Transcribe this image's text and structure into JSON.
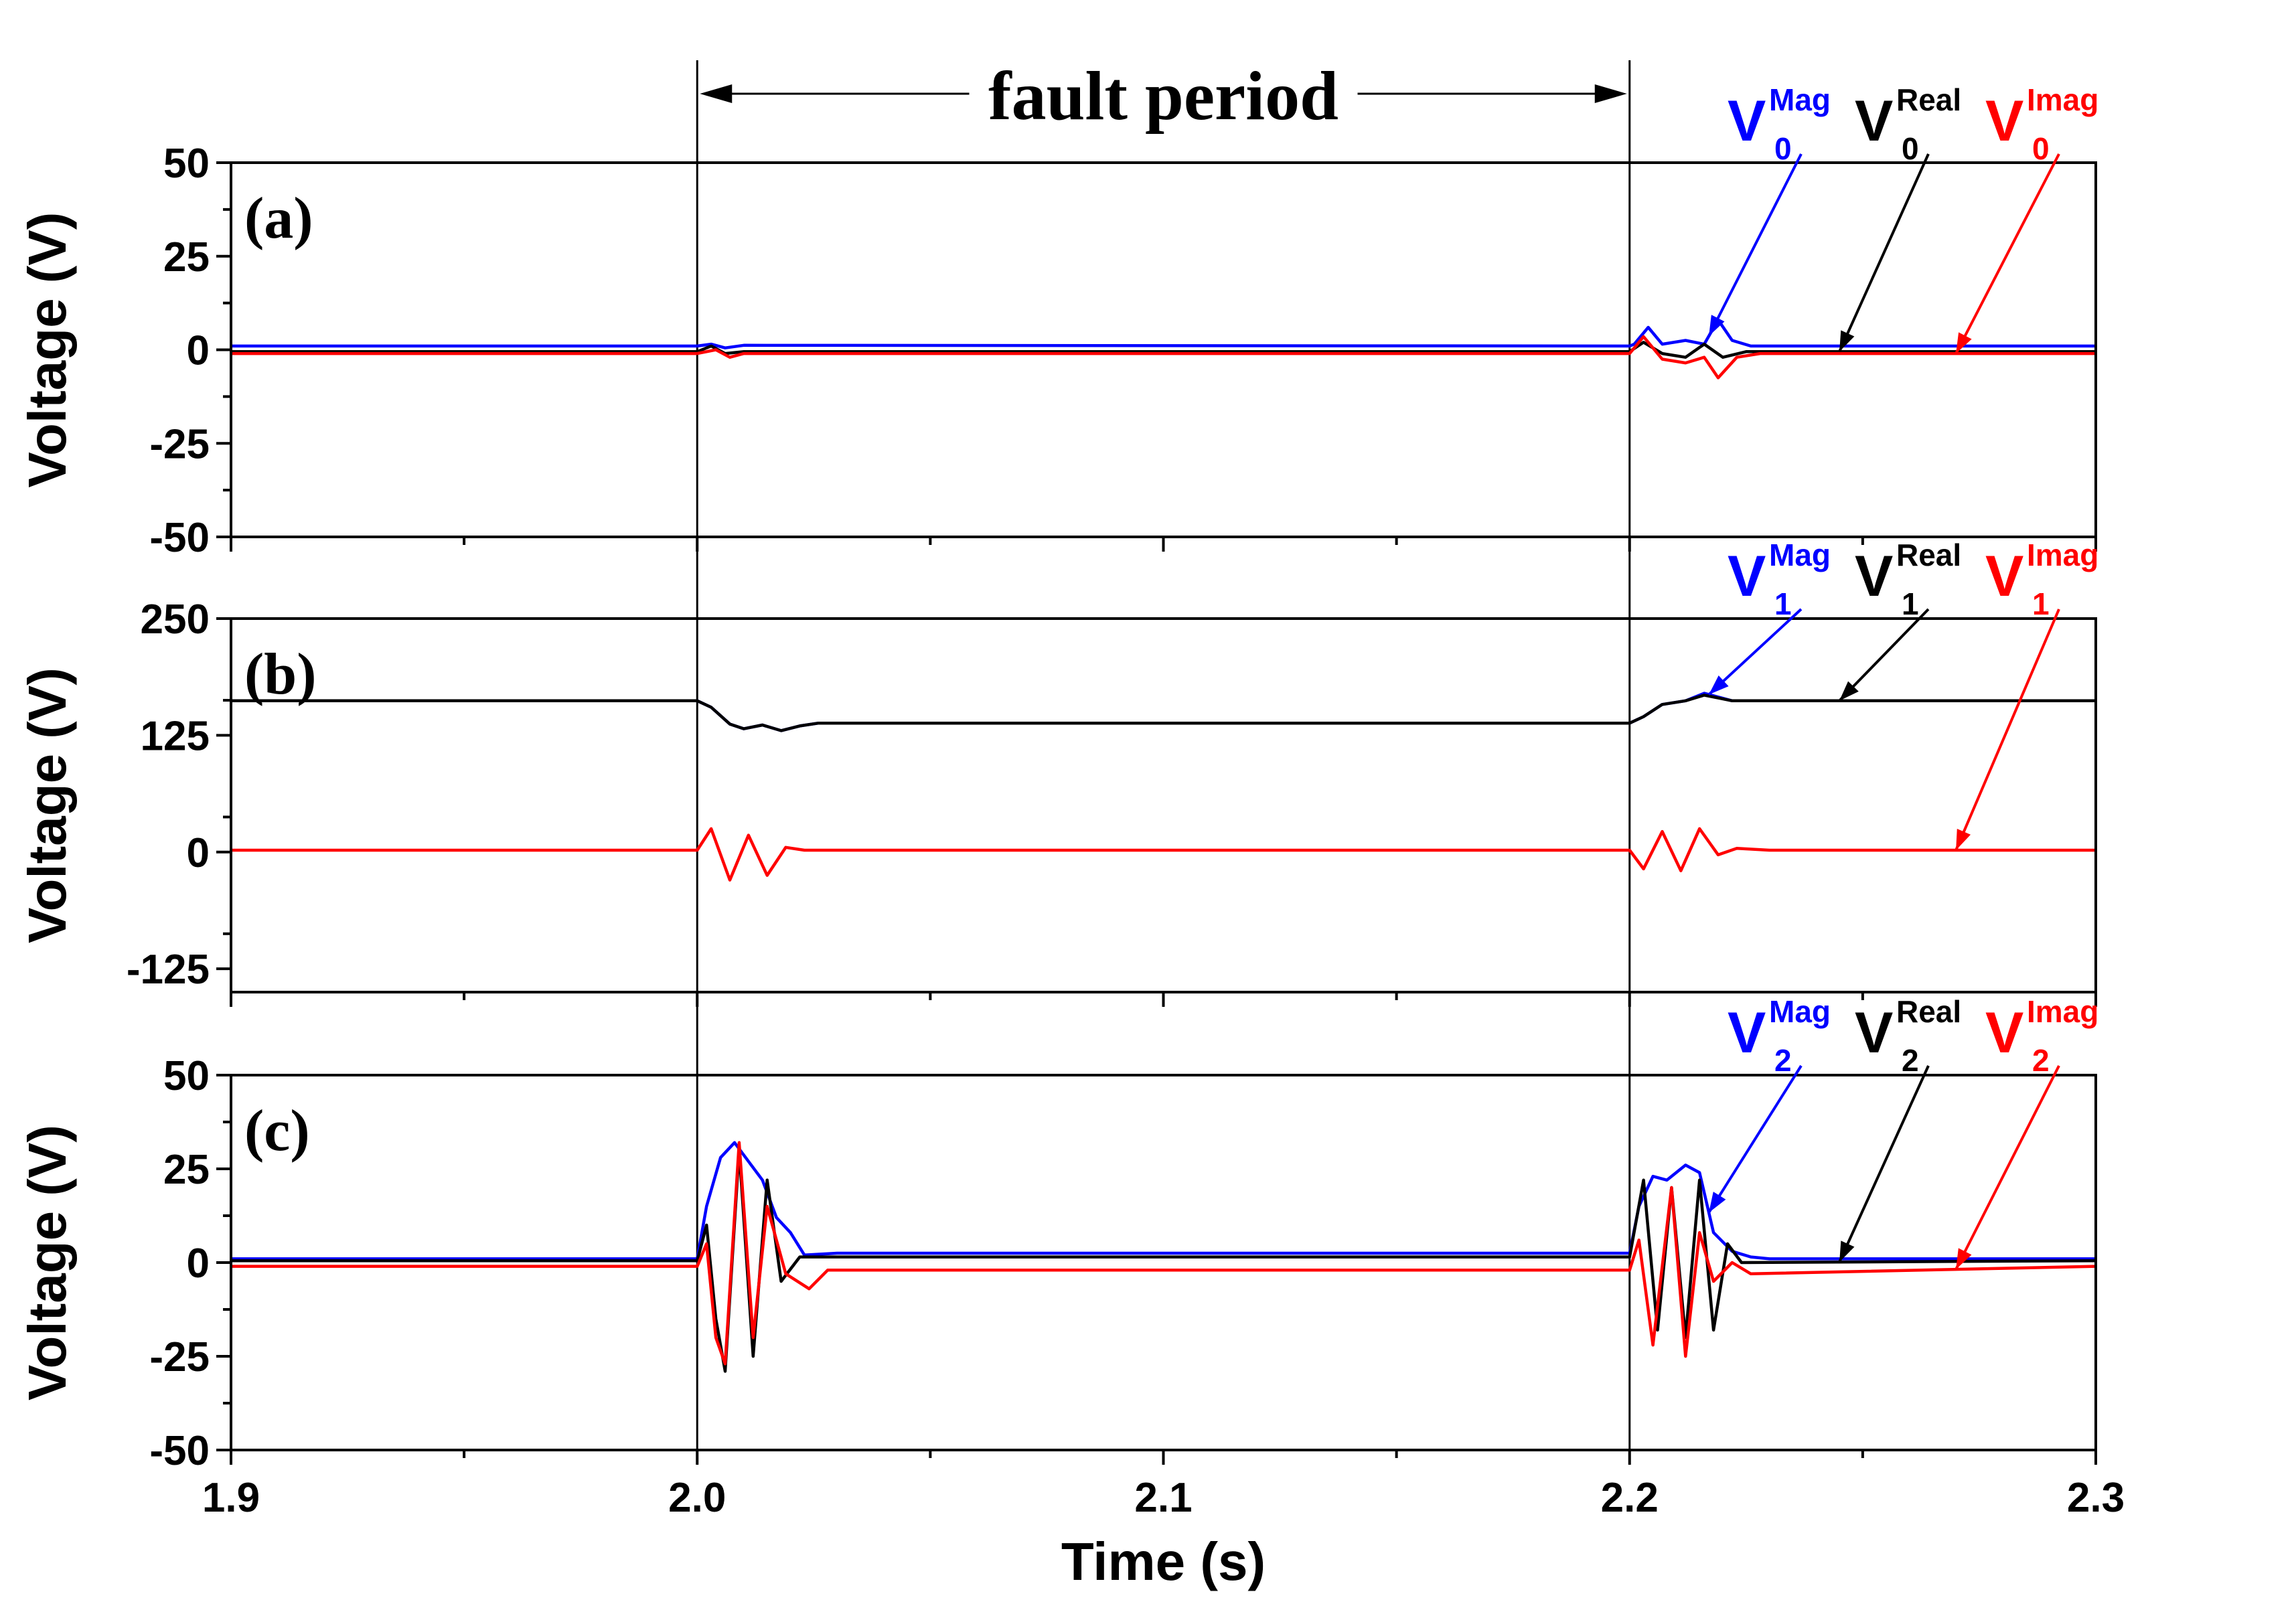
{
  "figure": {
    "xlabel": "Time (s)",
    "fault_label": "fault period",
    "fault_start": 2.0,
    "fault_end": 2.2
  },
  "chart_data": [
    {
      "type": "line",
      "panel": "(a)",
      "ylabel": "Voltage (V)",
      "xlim": [
        1.9,
        2.3
      ],
      "ylim": [
        -50,
        50
      ],
      "xticks": [
        "1.9",
        "2.0",
        "2.1",
        "2.2",
        "2.3"
      ],
      "yticks": [
        "50",
        "25",
        "0",
        "-25",
        "-50"
      ],
      "legend": {
        "subscript": "0",
        "labels": [
          "V",
          "V",
          "V"
        ],
        "superscripts": [
          "Mag",
          "Real",
          "Imag"
        ]
      },
      "series": [
        {
          "name": "V0 Mag",
          "color": "#0000ff",
          "points": [
            [
              1.9,
              1.0
            ],
            [
              2.0,
              1.0
            ],
            [
              2.003,
              1.5
            ],
            [
              2.006,
              0.5
            ],
            [
              2.01,
              1.2
            ],
            [
              2.2,
              1.0
            ],
            [
              2.201,
              1.5
            ],
            [
              2.204,
              6.0
            ],
            [
              2.207,
              1.5
            ],
            [
              2.212,
              2.5
            ],
            [
              2.216,
              1.5
            ],
            [
              2.219,
              8.0
            ],
            [
              2.222,
              2.5
            ],
            [
              2.226,
              1.0
            ],
            [
              2.3,
              1.0
            ]
          ]
        },
        {
          "name": "V0 Real",
          "color": "#000000",
          "points": [
            [
              1.9,
              -0.5
            ],
            [
              2.0,
              -0.5
            ],
            [
              2.003,
              1.0
            ],
            [
              2.006,
              -1.0
            ],
            [
              2.01,
              -0.5
            ],
            [
              2.2,
              -0.5
            ],
            [
              2.203,
              2.0
            ],
            [
              2.207,
              -1.0
            ],
            [
              2.212,
              -2.0
            ],
            [
              2.216,
              1.5
            ],
            [
              2.22,
              -2.0
            ],
            [
              2.225,
              -0.5
            ],
            [
              2.3,
              -0.5
            ]
          ]
        },
        {
          "name": "V0 Imag",
          "color": "#ff0000",
          "points": [
            [
              1.9,
              -1.0
            ],
            [
              2.0,
              -1.0
            ],
            [
              2.004,
              0.0
            ],
            [
              2.007,
              -2.0
            ],
            [
              2.01,
              -1.0
            ],
            [
              2.2,
              -1.0
            ],
            [
              2.203,
              3.5
            ],
            [
              2.207,
              -2.5
            ],
            [
              2.212,
              -3.5
            ],
            [
              2.216,
              -2.0
            ],
            [
              2.219,
              -7.5
            ],
            [
              2.223,
              -2.0
            ],
            [
              2.228,
              -1.0
            ],
            [
              2.3,
              -1.0
            ]
          ]
        }
      ]
    },
    {
      "type": "line",
      "panel": "(b)",
      "ylabel": "Voltage (V)",
      "xlim": [
        1.9,
        2.3
      ],
      "ylim": [
        -150,
        250
      ],
      "xticks": [
        "1.9",
        "2.0",
        "2.1",
        "2.2",
        "2.3"
      ],
      "yticks": [
        "250",
        "125",
        "0",
        "-125"
      ],
      "legend": {
        "subscript": "1",
        "labels": [
          "V",
          "V",
          "V"
        ],
        "superscripts": [
          "Mag",
          "Real",
          "Imag"
        ]
      },
      "series": [
        {
          "name": "V1 Mag",
          "color": "#0000ff",
          "points": [
            [
              1.9,
              162
            ],
            [
              2.0,
              162
            ],
            [
              2.003,
              155
            ],
            [
              2.007,
              137
            ],
            [
              2.01,
              132
            ],
            [
              2.014,
              136
            ],
            [
              2.018,
              130
            ],
            [
              2.022,
              135
            ],
            [
              2.026,
              138
            ],
            [
              2.03,
              138
            ],
            [
              2.2,
              138
            ],
            [
              2.203,
              145
            ],
            [
              2.207,
              158
            ],
            [
              2.212,
              162
            ],
            [
              2.216,
              170
            ],
            [
              2.219,
              166
            ],
            [
              2.222,
              162
            ],
            [
              2.3,
              162
            ]
          ]
        },
        {
          "name": "V1 Real",
          "color": "#000000",
          "points": [
            [
              1.9,
              162
            ],
            [
              2.0,
              162
            ],
            [
              2.003,
              155
            ],
            [
              2.007,
              137
            ],
            [
              2.01,
              132
            ],
            [
              2.014,
              136
            ],
            [
              2.018,
              130
            ],
            [
              2.022,
              135
            ],
            [
              2.026,
              138
            ],
            [
              2.03,
              138
            ],
            [
              2.2,
              138
            ],
            [
              2.203,
              145
            ],
            [
              2.207,
              158
            ],
            [
              2.212,
              162
            ],
            [
              2.216,
              168
            ],
            [
              2.219,
              165
            ],
            [
              2.222,
              162
            ],
            [
              2.3,
              162
            ]
          ]
        },
        {
          "name": "V1 Imag",
          "color": "#ff0000",
          "points": [
            [
              1.9,
              2
            ],
            [
              2.0,
              2
            ],
            [
              2.003,
              25
            ],
            [
              2.007,
              -30
            ],
            [
              2.011,
              18
            ],
            [
              2.015,
              -25
            ],
            [
              2.019,
              5
            ],
            [
              2.023,
              2
            ],
            [
              2.2,
              2
            ],
            [
              2.203,
              -18
            ],
            [
              2.207,
              22
            ],
            [
              2.211,
              -20
            ],
            [
              2.215,
              25
            ],
            [
              2.219,
              -3
            ],
            [
              2.223,
              4
            ],
            [
              2.23,
              2
            ],
            [
              2.3,
              2
            ]
          ]
        }
      ]
    },
    {
      "type": "line",
      "panel": "(c)",
      "ylabel": "Voltage (V)",
      "xlim": [
        1.9,
        2.3
      ],
      "ylim": [
        -50,
        50
      ],
      "xticks": [
        "1.9",
        "2.0",
        "2.1",
        "2.2",
        "2.3"
      ],
      "yticks": [
        "50",
        "25",
        "0",
        "-25",
        "-50"
      ],
      "legend": {
        "subscript": "2",
        "labels": [
          "V",
          "V",
          "V"
        ],
        "superscripts": [
          "Mag",
          "Real",
          "Imag"
        ]
      },
      "series": [
        {
          "name": "V2 Mag",
          "color": "#0000ff",
          "points": [
            [
              1.9,
              1.0
            ],
            [
              2.0,
              1.0
            ],
            [
              2.002,
              15
            ],
            [
              2.005,
              28
            ],
            [
              2.008,
              32
            ],
            [
              2.011,
              27
            ],
            [
              2.014,
              22
            ],
            [
              2.017,
              12
            ],
            [
              2.02,
              8
            ],
            [
              2.023,
              2
            ],
            [
              2.03,
              2.5
            ],
            [
              2.2,
              2.5
            ],
            [
              2.202,
              15
            ],
            [
              2.205,
              23
            ],
            [
              2.208,
              22
            ],
            [
              2.212,
              26
            ],
            [
              2.215,
              24
            ],
            [
              2.218,
              8
            ],
            [
              2.222,
              3
            ],
            [
              2.226,
              1.5
            ],
            [
              2.23,
              1.0
            ],
            [
              2.3,
              1.0
            ]
          ]
        },
        {
          "name": "V2 Real",
          "color": "#000000",
          "points": [
            [
              1.9,
              0.5
            ],
            [
              2.0,
              0.5
            ],
            [
              2.002,
              10
            ],
            [
              2.004,
              -15
            ],
            [
              2.006,
              -29
            ],
            [
              2.009,
              30
            ],
            [
              2.012,
              -25
            ],
            [
              2.015,
              22
            ],
            [
              2.018,
              -5
            ],
            [
              2.022,
              1.5
            ],
            [
              2.2,
              1.5
            ],
            [
              2.203,
              22
            ],
            [
              2.206,
              -18
            ],
            [
              2.209,
              20
            ],
            [
              2.212,
              -20
            ],
            [
              2.215,
              22
            ],
            [
              2.218,
              -18
            ],
            [
              2.221,
              5
            ],
            [
              2.224,
              0
            ],
            [
              2.3,
              0.5
            ]
          ]
        },
        {
          "name": "V2 Imag",
          "color": "#ff0000",
          "points": [
            [
              1.9,
              -1.0
            ],
            [
              2.0,
              -1.0
            ],
            [
              2.002,
              5
            ],
            [
              2.004,
              -20
            ],
            [
              2.006,
              -27
            ],
            [
              2.009,
              32
            ],
            [
              2.012,
              -20
            ],
            [
              2.015,
              15
            ],
            [
              2.019,
              -3
            ],
            [
              2.024,
              -7
            ],
            [
              2.028,
              -2
            ],
            [
              2.2,
              -2
            ],
            [
              2.202,
              6
            ],
            [
              2.205,
              -22
            ],
            [
              2.209,
              20
            ],
            [
              2.212,
              -25
            ],
            [
              2.215,
              8
            ],
            [
              2.218,
              -5
            ],
            [
              2.222,
              0
            ],
            [
              2.226,
              -3
            ],
            [
              2.3,
              -1
            ]
          ]
        }
      ]
    }
  ]
}
